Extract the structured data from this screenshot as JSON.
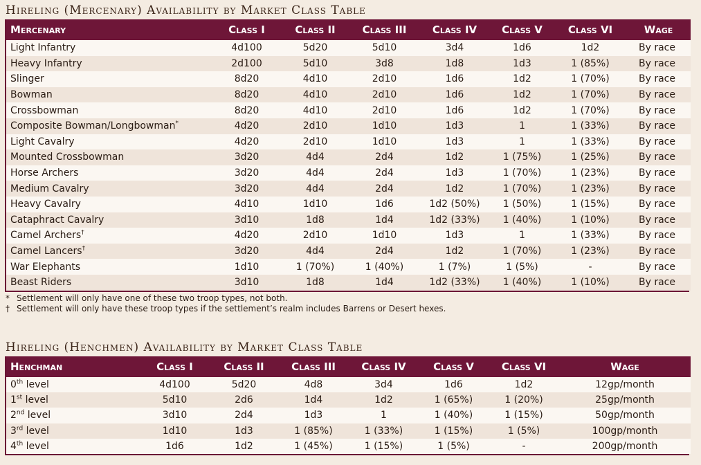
{
  "mercenary_table": {
    "title": "Hireling (Mercenary) Availability by Market Class Table",
    "headers": [
      "Mercenary",
      "Class I",
      "Class II",
      "Class III",
      "Class IV",
      "Class V",
      "Class VI",
      "Wage"
    ],
    "rows": [
      {
        "name": "Light Infantry",
        "mark": "",
        "values": [
          "4d100",
          "5d20",
          "5d10",
          "3d4",
          "1d6",
          "1d2",
          "By race"
        ]
      },
      {
        "name": "Heavy Infantry",
        "mark": "",
        "values": [
          "2d100",
          "5d10",
          "3d8",
          "1d8",
          "1d3",
          "1 (85%)",
          "By race"
        ]
      },
      {
        "name": "Slinger",
        "mark": "",
        "values": [
          "8d20",
          "4d10",
          "2d10",
          "1d6",
          "1d2",
          "1 (70%)",
          "By race"
        ]
      },
      {
        "name": "Bowman",
        "mark": "",
        "values": [
          "8d20",
          "4d10",
          "2d10",
          "1d6",
          "1d2",
          "1 (70%)",
          "By race"
        ]
      },
      {
        "name": "Crossbowman",
        "mark": "",
        "values": [
          "8d20",
          "4d10",
          "2d10",
          "1d6",
          "1d2",
          "1 (70%)",
          "By race"
        ]
      },
      {
        "name": "Composite Bowman/Longbowman",
        "mark": "*",
        "values": [
          "4d20",
          "2d10",
          "1d10",
          "1d3",
          "1",
          "1 (33%)",
          "By race"
        ]
      },
      {
        "name": "Light Cavalry",
        "mark": "",
        "values": [
          "4d20",
          "2d10",
          "1d10",
          "1d3",
          "1",
          "1 (33%)",
          "By race"
        ]
      },
      {
        "name": "Mounted Crossbowman",
        "mark": "",
        "values": [
          "3d20",
          "4d4",
          "2d4",
          "1d2",
          "1 (75%)",
          "1 (25%)",
          "By race"
        ]
      },
      {
        "name": "Horse Archers",
        "mark": "",
        "values": [
          "3d20",
          "4d4",
          "2d4",
          "1d3",
          "1 (70%)",
          "1 (23%)",
          "By race"
        ]
      },
      {
        "name": "Medium Cavalry",
        "mark": "",
        "values": [
          "3d20",
          "4d4",
          "2d4",
          "1d2",
          "1 (70%)",
          "1 (23%)",
          "By race"
        ]
      },
      {
        "name": "Heavy Cavalry",
        "mark": "",
        "values": [
          "4d10",
          "1d10",
          "1d6",
          "1d2 (50%)",
          "1 (50%)",
          "1 (15%)",
          "By race"
        ]
      },
      {
        "name": "Cataphract Cavalry",
        "mark": "",
        "values": [
          "3d10",
          "1d8",
          "1d4",
          "1d2 (33%)",
          "1 (40%)",
          "1 (10%)",
          "By race"
        ]
      },
      {
        "name": "Camel Archers",
        "mark": "†",
        "values": [
          "4d20",
          "2d10",
          "1d10",
          "1d3",
          "1",
          "1 (33%)",
          "By race"
        ]
      },
      {
        "name": "Camel Lancers",
        "mark": "†",
        "values": [
          "3d20",
          "4d4",
          "2d4",
          "1d2",
          "1 (70%)",
          "1 (23%)",
          "By race"
        ]
      },
      {
        "name": "War Elephants",
        "mark": "",
        "values": [
          "1d10",
          "1 (70%)",
          "1 (40%)",
          "1 (7%)",
          "1 (5%)",
          "-",
          "By race"
        ]
      },
      {
        "name": "Beast Riders",
        "mark": "",
        "values": [
          "3d10",
          "1d8",
          "1d4",
          "1d2 (33%)",
          "1 (40%)",
          "1 (10%)",
          "By race"
        ]
      }
    ],
    "footnotes": [
      {
        "mark": "*",
        "text": "Settlement will only have one of these two troop types, not both."
      },
      {
        "mark": "†",
        "text": "Settlement will only have these troop types if the settlement’s realm includes Barrens or Desert hexes."
      }
    ]
  },
  "henchmen_table": {
    "title": "Hireling (Henchmen) Availability by Market Class Table",
    "headers": [
      "Henchman",
      "Class I",
      "Class II",
      "Class III",
      "Class IV",
      "Class V",
      "Class VI",
      "Wage"
    ],
    "rows": [
      {
        "num": "0",
        "ord": "th",
        "suffix": " level",
        "values": [
          "4d100",
          "5d20",
          "4d8",
          "3d4",
          "1d6",
          "1d2",
          "12gp/month"
        ]
      },
      {
        "num": "1",
        "ord": "st",
        "suffix": " level",
        "values": [
          "5d10",
          "2d6",
          "1d4",
          "1d2",
          "1 (65%)",
          "1 (20%)",
          "25gp/month"
        ]
      },
      {
        "num": "2",
        "ord": "nd",
        "suffix": " level",
        "values": [
          "3d10",
          "2d4",
          "1d3",
          "1",
          "1 (40%)",
          "1 (15%)",
          "50gp/month"
        ]
      },
      {
        "num": "3",
        "ord": "rd",
        "suffix": " level",
        "values": [
          "1d10",
          "1d3",
          "1 (85%)",
          "1 (33%)",
          "1 (15%)",
          "1 (5%)",
          "100gp/month"
        ]
      },
      {
        "num": "4",
        "ord": "th",
        "suffix": " level",
        "values": [
          "1d6",
          "1d2",
          "1 (45%)",
          "1 (15%)",
          "1 (5%)",
          "-",
          "200gp/month"
        ]
      }
    ]
  }
}
